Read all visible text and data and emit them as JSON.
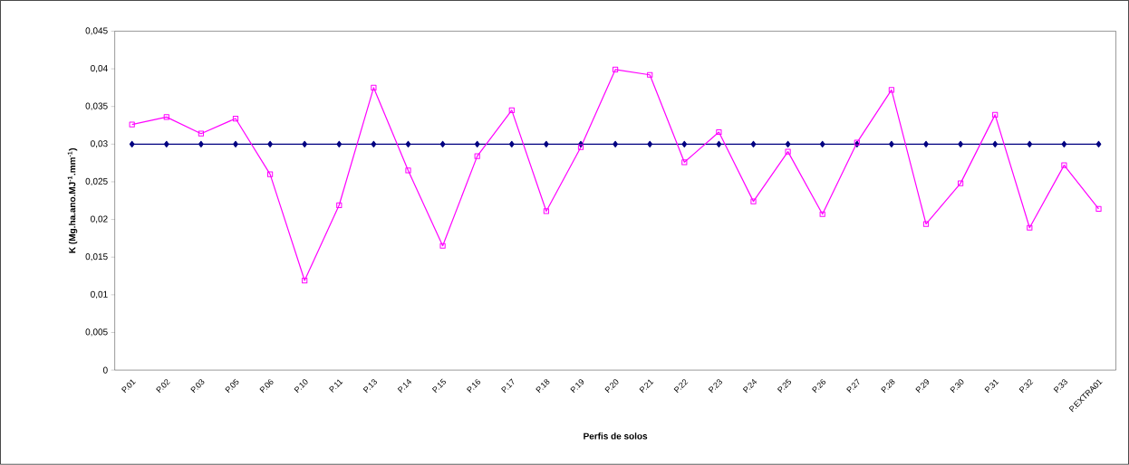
{
  "chart_data": {
    "type": "line",
    "xlabel": "Perfis de solos",
    "ylabel": "K (Mg.ha.ano.MJ$^{-1}$.mm$^{-1}$)",
    "categories": [
      "P.01",
      "P.02",
      "P.03",
      "P.05",
      "P.06",
      "P.10",
      "P.11",
      "P.13",
      "P.14",
      "P.15",
      "P.16",
      "P.17",
      "P.18",
      "P.19",
      "P.20",
      "P.21",
      "P.22",
      "P.23",
      "P.24",
      "P.25",
      "P.26",
      "P.27",
      "P.28",
      "P.29",
      "P.30",
      "P.31",
      "P.32",
      "P.33",
      "P.EXTRA01"
    ],
    "series": [
      {
        "color": "#000080",
        "marker": "diamond",
        "values": [
          0.03,
          0.03,
          0.03,
          0.03,
          0.03,
          0.03,
          0.03,
          0.03,
          0.03,
          0.03,
          0.03,
          0.03,
          0.03,
          0.03,
          0.03,
          0.03,
          0.03,
          0.03,
          0.03,
          0.03,
          0.03,
          0.03,
          0.03,
          0.03,
          0.03,
          0.03,
          0.03,
          0.03,
          0.03
        ]
      },
      {
        "color": "#ff00ff",
        "marker": "square",
        "values": [
          0.0326,
          0.0336,
          0.0314,
          0.0334,
          0.026,
          0.0119,
          0.0219,
          0.0375,
          0.0265,
          0.0165,
          0.0284,
          0.0345,
          0.0211,
          0.0296,
          0.0399,
          0.0392,
          0.0276,
          0.0316,
          0.0224,
          0.029,
          0.0207,
          0.0302,
          0.0372,
          0.0194,
          0.0248,
          0.0339,
          0.0189,
          0.0272,
          0.0214
        ]
      }
    ],
    "ylim": [
      0,
      0.045
    ],
    "yticks": [
      {
        "value": 0,
        "label": "0"
      },
      {
        "value": 0.005,
        "label": "0,005"
      },
      {
        "value": 0.01,
        "label": "0,01"
      },
      {
        "value": 0.015,
        "label": "0,015"
      },
      {
        "value": 0.02,
        "label": "0,02"
      },
      {
        "value": 0.025,
        "label": "0,025"
      },
      {
        "value": 0.03,
        "label": "0,03"
      },
      {
        "value": 0.035,
        "label": "0,035"
      },
      {
        "value": 0.04,
        "label": "0,04"
      },
      {
        "value": 0.045,
        "label": "0,045"
      }
    ],
    "line_style": "solid"
  }
}
